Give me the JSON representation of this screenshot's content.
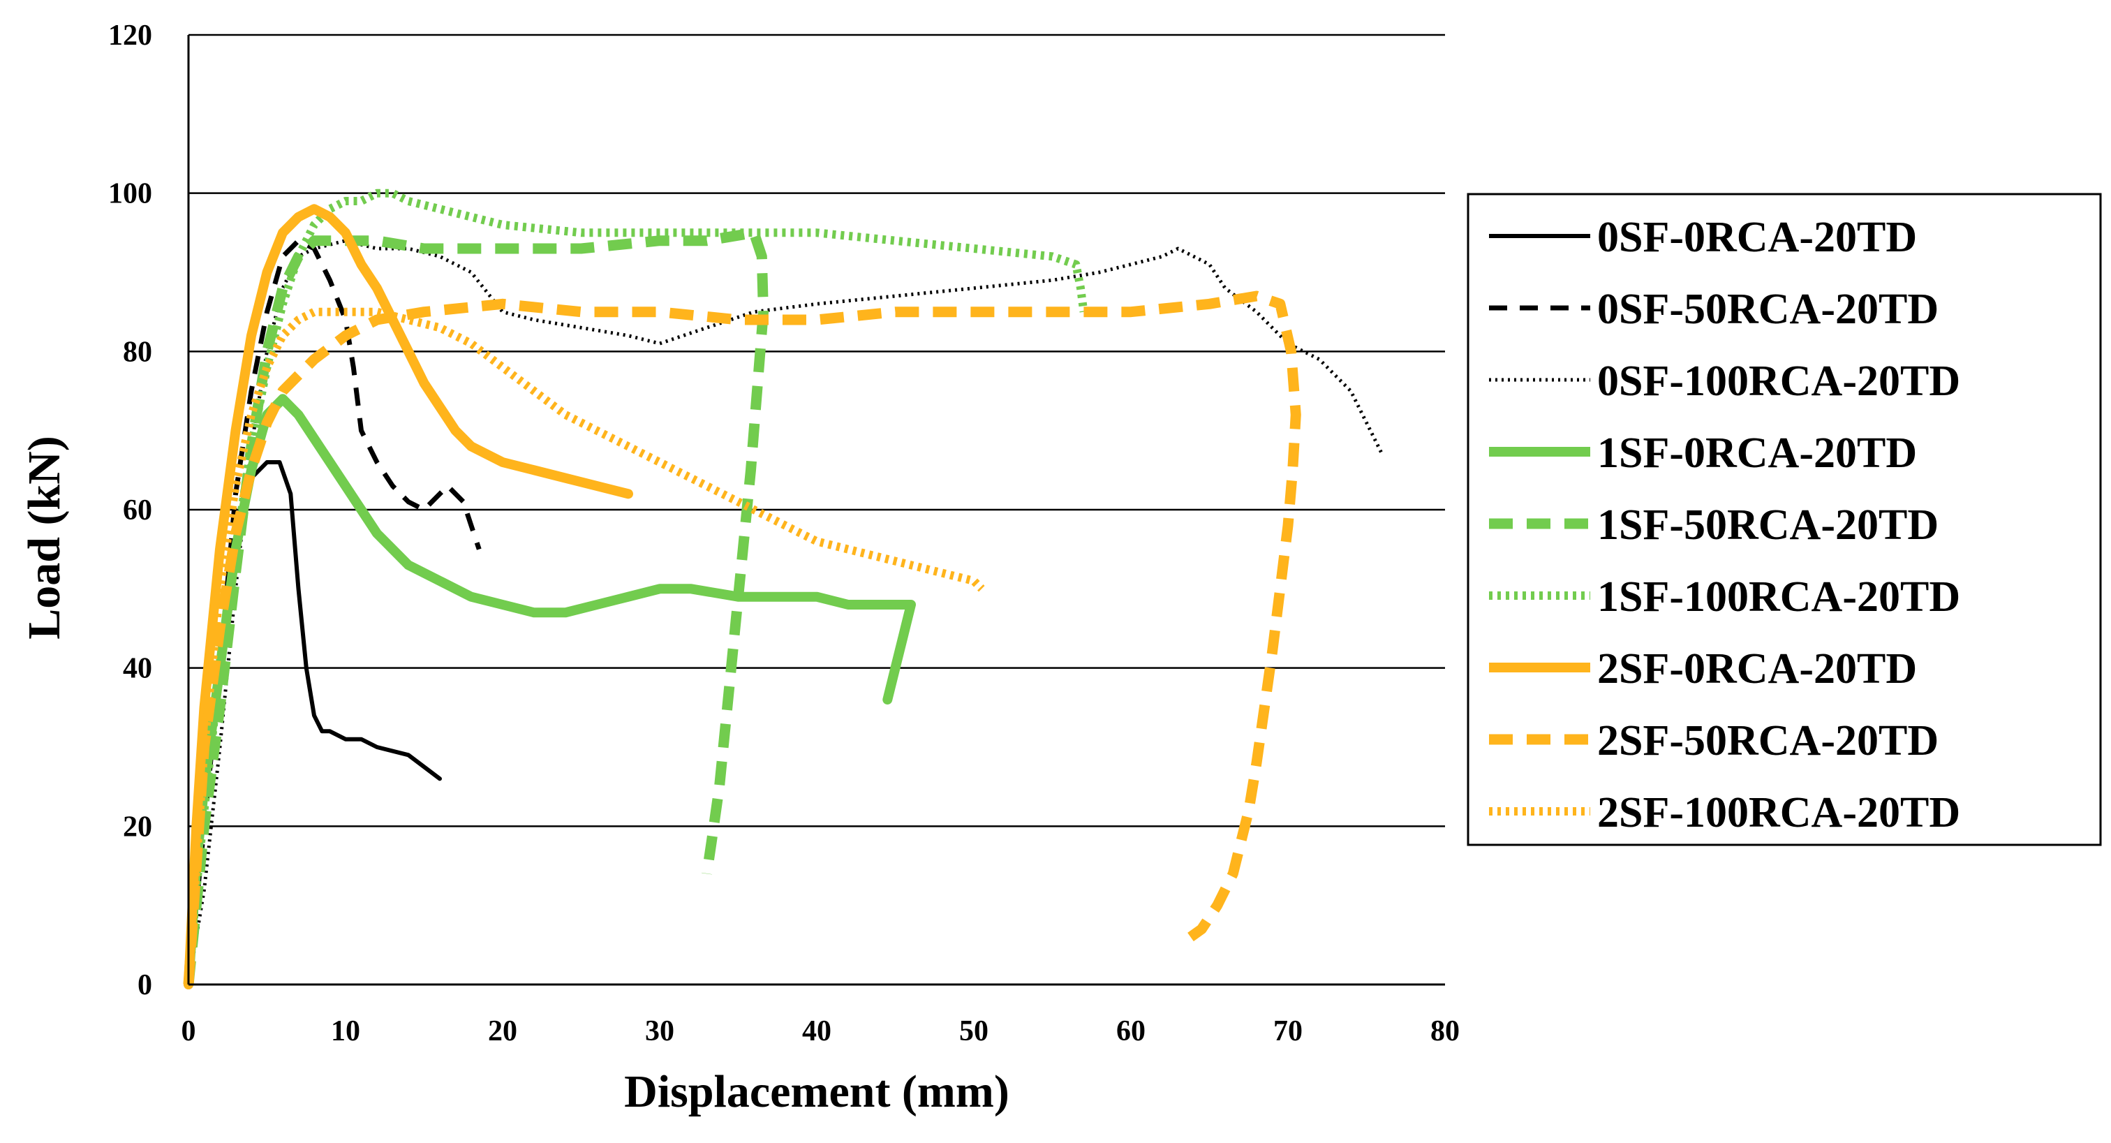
{
  "chart_data": {
    "type": "line",
    "title": "",
    "xlabel": "Displacement (mm)",
    "ylabel": "Load (kN)",
    "xlim": [
      0,
      80
    ],
    "ylim": [
      0,
      120
    ],
    "xticks": [
      "0",
      "10",
      "20",
      "30",
      "40",
      "50",
      "60",
      "70",
      "80"
    ],
    "yticks": [
      "0",
      "20",
      "40",
      "60",
      "80",
      "100",
      "120"
    ],
    "grid": "horizontal",
    "legend_position": "right",
    "series": [
      {
        "name": "0SF-0RCA-20TD",
        "color": "#000000",
        "style": "solid",
        "x": [
          0,
          1,
          2,
          3,
          4,
          5,
          5.8,
          6.5,
          7,
          7.5,
          8,
          8.5,
          9,
          10,
          11,
          12,
          14,
          16
        ],
        "y": [
          0,
          22,
          40,
          55,
          64,
          66,
          66,
          62,
          50,
          40,
          34,
          32,
          32,
          31,
          31,
          30,
          29,
          26
        ]
      },
      {
        "name": "0SF-50RCA-20TD",
        "color": "#000000",
        "style": "dashed",
        "x": [
          0,
          1,
          2,
          3,
          4,
          5,
          6,
          7,
          8,
          9,
          10,
          10.5,
          11,
          12,
          13,
          14,
          15,
          16,
          16.5,
          17,
          17.5,
          18,
          18.5
        ],
        "y": [
          0,
          20,
          40,
          62,
          75,
          85,
          92,
          94,
          93,
          89,
          84,
          78,
          70,
          66,
          63,
          61,
          60,
          62,
          63,
          62,
          61,
          58,
          55
        ]
      },
      {
        "name": "0SF-100RCA-20TD",
        "color": "#000000",
        "style": "dotted",
        "x": [
          0,
          1,
          2,
          3,
          4,
          5,
          6,
          7,
          8,
          10,
          12,
          14,
          16,
          18,
          20,
          22,
          25,
          28,
          30,
          33,
          36,
          40,
          45,
          50,
          55,
          58,
          60,
          62,
          63,
          64,
          65,
          66,
          68,
          70,
          72,
          74,
          75,
          76
        ],
        "y": [
          0,
          12,
          30,
          50,
          68,
          80,
          88,
          92,
          93,
          94,
          93,
          93,
          92,
          90,
          85,
          84,
          83,
          82,
          81,
          83,
          85,
          86,
          87,
          88,
          89,
          90,
          91,
          92,
          93,
          92,
          91,
          88,
          85,
          81,
          79,
          75,
          71,
          67
        ]
      },
      {
        "name": "1SF-0RCA-20TD",
        "color": "#72cc4e",
        "style": "solid",
        "x": [
          0,
          0.5,
          1,
          2,
          3,
          4,
          5,
          6,
          7,
          8,
          9,
          10,
          11,
          12,
          14,
          16,
          18,
          20,
          22,
          24,
          26,
          28,
          30,
          32,
          35,
          38,
          40,
          42,
          44,
          45,
          46,
          45.5,
          45,
          44.5
        ],
        "y": [
          0,
          15,
          25,
          40,
          55,
          65,
          72,
          74,
          72,
          69,
          66,
          63,
          60,
          57,
          53,
          51,
          49,
          48,
          47,
          47,
          48,
          49,
          50,
          50,
          49,
          49,
          49,
          48,
          48,
          48,
          48,
          44,
          40,
          36
        ]
      },
      {
        "name": "1SF-50RCA-20TD",
        "color": "#72cc4e",
        "style": "dashed",
        "x": [
          0,
          0.5,
          1,
          2,
          3,
          4,
          5,
          6,
          7,
          8,
          9,
          10,
          12,
          15,
          20,
          25,
          30,
          33,
          36,
          36.5,
          36.6,
          36.2,
          35.8,
          35.3,
          34.8,
          34.3,
          33.8,
          33.3,
          33
        ],
        "y": [
          0,
          10,
          20,
          35,
          52,
          68,
          80,
          88,
          92,
          94,
          94,
          94,
          94,
          93,
          93,
          93,
          94,
          94,
          95,
          92,
          85,
          75,
          65,
          55,
          45,
          35,
          25,
          18,
          14
        ]
      },
      {
        "name": "1SF-100RCA-20TD",
        "color": "#72cc4e",
        "style": "dotted",
        "x": [
          0,
          0.5,
          1,
          2,
          3,
          4,
          5,
          6,
          7,
          8,
          9,
          10,
          11,
          12,
          13,
          14,
          16,
          18,
          20,
          25,
          30,
          35,
          40,
          45,
          50,
          55,
          56.5,
          56.8,
          57
        ],
        "y": [
          0,
          12,
          22,
          40,
          55,
          68,
          78,
          86,
          92,
          96,
          98,
          99,
          99,
          100,
          100,
          99,
          98,
          97,
          96,
          95,
          95,
          95,
          95,
          94,
          93,
          92,
          91,
          88,
          85
        ]
      },
      {
        "name": "2SF-0RCA-20TD",
        "color": "#ffb41c",
        "style": "solid",
        "x": [
          0,
          0.5,
          1,
          2,
          3,
          4,
          5,
          6,
          7,
          8,
          9,
          10,
          11,
          12,
          13,
          14,
          15,
          16,
          17,
          18,
          20,
          22,
          24,
          26,
          28
        ],
        "y": [
          0,
          20,
          35,
          55,
          70,
          82,
          90,
          95,
          97,
          98,
          97,
          95,
          91,
          88,
          84,
          80,
          76,
          73,
          70,
          68,
          66,
          65,
          64,
          63,
          62
        ]
      },
      {
        "name": "2SF-50RCA-20TD",
        "color": "#ffb41c",
        "style": "dashed",
        "x": [
          0,
          0.5,
          1,
          2,
          3,
          4,
          5,
          6,
          7,
          8,
          10,
          12,
          15,
          20,
          25,
          30,
          35,
          40,
          45,
          50,
          55,
          60,
          65,
          68,
          69.5,
          70.2,
          70.5,
          70.3,
          70,
          69.5,
          69,
          68.5,
          68,
          67.5,
          67,
          66.5,
          65.5,
          64.5,
          63.8
        ],
        "y": [
          0,
          15,
          30,
          45,
          57,
          65,
          71,
          75,
          77,
          79,
          82,
          84,
          85,
          86,
          85,
          85,
          84,
          84,
          85,
          85,
          85,
          85,
          86,
          87,
          86,
          80,
          72,
          65,
          58,
          50,
          42,
          35,
          28,
          22,
          18,
          14,
          10,
          7,
          6
        ]
      },
      {
        "name": "2SF-100RCA-20TD",
        "color": "#ffb41c",
        "style": "dotted",
        "x": [
          0,
          0.5,
          1,
          2,
          3,
          4,
          5,
          6,
          7,
          8,
          9,
          10,
          12,
          14,
          16,
          18,
          20,
          22,
          24,
          26,
          28,
          30,
          32,
          34,
          36,
          38,
          40,
          42,
          44,
          46,
          48,
          50,
          50.5
        ],
        "y": [
          0,
          15,
          30,
          50,
          63,
          72,
          78,
          82,
          84,
          85,
          85,
          85,
          85,
          84,
          83,
          81,
          78,
          75,
          72,
          70,
          68,
          66,
          64,
          62,
          60,
          58,
          56,
          55,
          54,
          53,
          52,
          51,
          50
        ]
      }
    ]
  }
}
